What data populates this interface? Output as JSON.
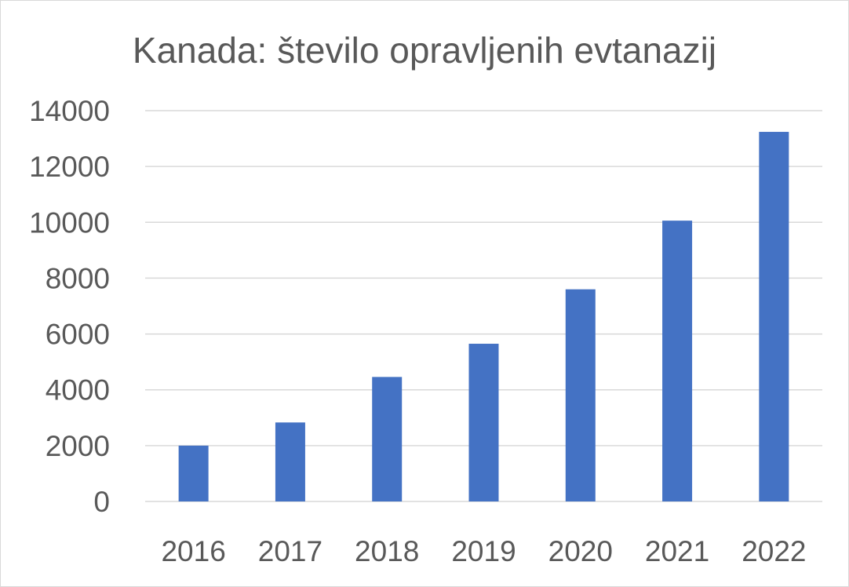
{
  "chart_data": {
    "type": "bar",
    "title": "Kanada: število opravljenih evtanazij",
    "xlabel": "",
    "ylabel": "",
    "categories": [
      "2016",
      "2017",
      "2018",
      "2019",
      "2020",
      "2021",
      "2022"
    ],
    "values": [
      2000,
      2830,
      4460,
      5650,
      7600,
      10060,
      13240
    ],
    "ylim": [
      0,
      14000
    ],
    "yticks": [
      "0",
      "2000",
      "4000",
      "6000",
      "8000",
      "10000",
      "12000",
      "14000"
    ],
    "grid": true,
    "legend": "none",
    "colors": {
      "bar": "#4472c4",
      "grid": "#d9d9d9",
      "text": "#595959"
    }
  }
}
